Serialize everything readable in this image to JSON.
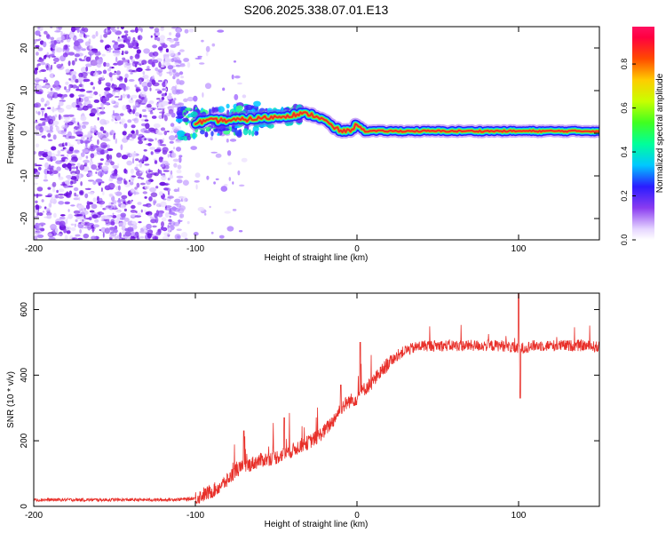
{
  "title": "S206.2025.338.07.01.E13",
  "colors": {
    "snr_line": "#e8302a",
    "dot_purple": "#8a3cf0",
    "ridge_core": "#e8302a"
  },
  "chart_data": [
    {
      "type": "heatmap",
      "name": "spectrogram",
      "xlabel": "Height of straight line (km)",
      "ylabel": "Frequency (Hz)",
      "xlim": [
        -200,
        150
      ],
      "ylim": [
        -25,
        25
      ],
      "xticks": [
        "-200",
        "-100",
        "0",
        "100"
      ],
      "xtick_values": [
        -200,
        -100,
        0,
        100
      ],
      "yticks": [
        "-20",
        "-10",
        "0",
        "10",
        "20"
      ],
      "ytick_values": [
        -20,
        -10,
        0,
        10,
        20
      ],
      "colorbar": {
        "label": "Normalized spectral amplitude",
        "ticks": [
          "0.0",
          "0.2",
          "0.4",
          "0.6",
          "0.8"
        ],
        "tick_values": [
          0.0,
          0.2,
          0.4,
          0.6,
          0.8
        ],
        "range": [
          0,
          0.97
        ]
      },
      "noise_region_x": [
        -200,
        -100
      ],
      "ridge": {
        "x": [
          -110,
          -100,
          -90,
          -80,
          -70,
          -60,
          -50,
          -40,
          -35,
          -30,
          -25,
          -20,
          -15,
          -10,
          -5,
          0,
          5,
          10,
          20,
          40,
          60,
          80,
          100,
          120,
          150
        ],
        "freq": [
          2.0,
          2.5,
          3.0,
          3.0,
          3.2,
          3.5,
          3.8,
          4.3,
          4.5,
          4.5,
          4.0,
          3.0,
          1.5,
          0.5,
          0.5,
          2.0,
          0.5,
          0.5,
          0.5,
          0.5,
          0.5,
          0.5,
          0.5,
          0.5,
          0.5
        ]
      }
    },
    {
      "type": "line",
      "name": "snr",
      "xlabel": "Height of straight line (km)",
      "ylabel": "SNR (10 * v/v)",
      "xlim": [
        -200,
        150
      ],
      "ylim": [
        0,
        650
      ],
      "xticks": [
        "-200",
        "-100",
        "0",
        "100"
      ],
      "xtick_values": [
        -200,
        -100,
        0,
        100
      ],
      "yticks": [
        "0",
        "200",
        "400",
        "600"
      ],
      "ytick_values": [
        0,
        200,
        400,
        600
      ],
      "series": [
        {
          "name": "SNR",
          "x": [
            -200,
            -180,
            -160,
            -140,
            -120,
            -105,
            -100,
            -95,
            -90,
            -85,
            -80,
            -75,
            -70,
            -65,
            -60,
            -55,
            -50,
            -45,
            -40,
            -35,
            -30,
            -25,
            -20,
            -15,
            -10,
            -5,
            0,
            5,
            10,
            15,
            20,
            25,
            30,
            40,
            50,
            60,
            70,
            80,
            90,
            100,
            110,
            120,
            130,
            140,
            150
          ],
          "values": [
            20,
            20,
            20,
            20,
            20,
            22,
            25,
            35,
            45,
            60,
            80,
            110,
            120,
            130,
            140,
            145,
            150,
            160,
            170,
            185,
            195,
            210,
            230,
            260,
            300,
            320,
            330,
            360,
            380,
            410,
            440,
            460,
            475,
            490,
            490,
            490,
            490,
            490,
            490,
            480,
            490,
            490,
            490,
            490,
            485
          ]
        }
      ],
      "annotations_peaks": [
        {
          "x": -70,
          "y": 230
        },
        {
          "x": -45,
          "y": 270
        },
        {
          "x": -10,
          "y": 370
        },
        {
          "x": 2,
          "y": 500
        },
        {
          "x": 100,
          "y": 650
        },
        {
          "x": 101,
          "y": 330
        }
      ]
    }
  ]
}
